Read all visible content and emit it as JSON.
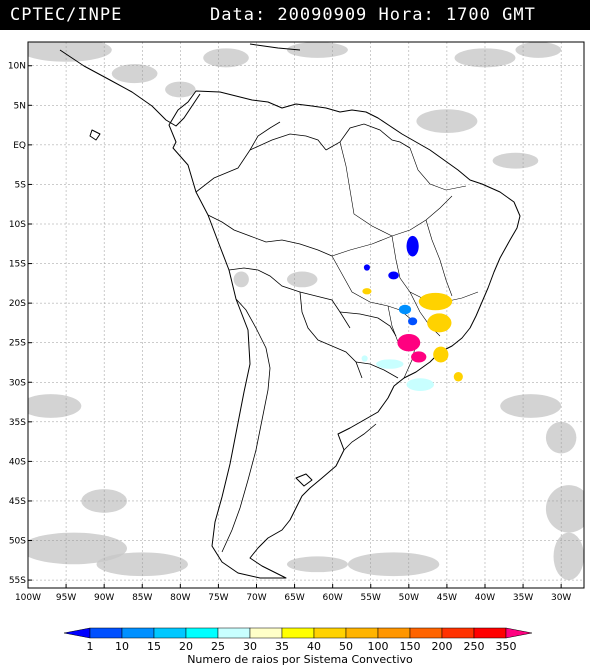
{
  "header": {
    "org": "CPTEC/INPE",
    "stamp": "Data: 20090909 Hora: 1700 GMT"
  },
  "map": {
    "lat_ticks": [
      "10N",
      "5N",
      "EQ",
      "5S",
      "10S",
      "15S",
      "20S",
      "25S",
      "30S",
      "35S",
      "40S",
      "45S",
      "50S",
      "55S"
    ],
    "lon_ticks": [
      "100W",
      "95W",
      "90W",
      "85W",
      "80W",
      "75W",
      "70W",
      "65W",
      "60W",
      "55W",
      "50W",
      "45W",
      "40W",
      "35W",
      "30W"
    ],
    "extent": {
      "lon_min": -100,
      "lon_max": -27,
      "lat_min": -56,
      "lat_max": 13
    },
    "grid": true,
    "cloud_color": "#c8c8c8"
  },
  "legend": {
    "title": "Numero de raios por Sistema Convectivo",
    "values": [
      "1",
      "10",
      "15",
      "20",
      "25",
      "30",
      "35",
      "40",
      "50",
      "100",
      "150",
      "200",
      "250",
      "350"
    ],
    "colors": [
      "#0000ff",
      "#0050ff",
      "#0090ff",
      "#00c8ff",
      "#00ffff",
      "#c8ffff",
      "#ffffc8",
      "#ffff00",
      "#ffd200",
      "#ffb400",
      "#ff9600",
      "#ff6400",
      "#ff3200",
      "#ff0000",
      "#ff0080"
    ]
  },
  "systems": [
    {
      "lon": -49.5,
      "lat": -12.8,
      "rx": 0.8,
      "ry": 1.3,
      "color": "#0000ff"
    },
    {
      "lon": -55.5,
      "lat": -15.5,
      "rx": 0.4,
      "ry": 0.4,
      "color": "#0000ff"
    },
    {
      "lon": -52,
      "lat": -16.5,
      "rx": 0.7,
      "ry": 0.5,
      "color": "#0000ff"
    },
    {
      "lon": -50.5,
      "lat": -20.8,
      "rx": 0.8,
      "ry": 0.6,
      "color": "#0090ff"
    },
    {
      "lon": -49.5,
      "lat": -22.3,
      "rx": 0.6,
      "ry": 0.5,
      "color": "#0050ff"
    },
    {
      "lon": -55.5,
      "lat": -18.5,
      "rx": 0.6,
      "ry": 0.4,
      "color": "#ffd200"
    },
    {
      "lon": -46.5,
      "lat": -19.8,
      "rx": 2.2,
      "ry": 1.1,
      "color": "#ffd200"
    },
    {
      "lon": -46,
      "lat": -22.5,
      "rx": 1.6,
      "ry": 1.2,
      "color": "#ffd200"
    },
    {
      "lon": -45.8,
      "lat": -26.5,
      "rx": 1.0,
      "ry": 1.0,
      "color": "#ffd200"
    },
    {
      "lon": -43.5,
      "lat": -29.3,
      "rx": 0.6,
      "ry": 0.6,
      "color": "#ffd200"
    },
    {
      "lon": -50,
      "lat": -25,
      "rx": 1.5,
      "ry": 1.1,
      "color": "#ff0080"
    },
    {
      "lon": -48.7,
      "lat": -26.8,
      "rx": 1.0,
      "ry": 0.7,
      "color": "#ff0080"
    },
    {
      "lon": -52.5,
      "lat": -27.7,
      "rx": 1.8,
      "ry": 0.6,
      "color": "#c8ffff"
    },
    {
      "lon": -48.5,
      "lat": -30.3,
      "rx": 1.8,
      "ry": 0.8,
      "color": "#c8ffff"
    },
    {
      "lon": -55.8,
      "lat": -27,
      "rx": 0.4,
      "ry": 0.4,
      "color": "#c8ffff"
    }
  ]
}
